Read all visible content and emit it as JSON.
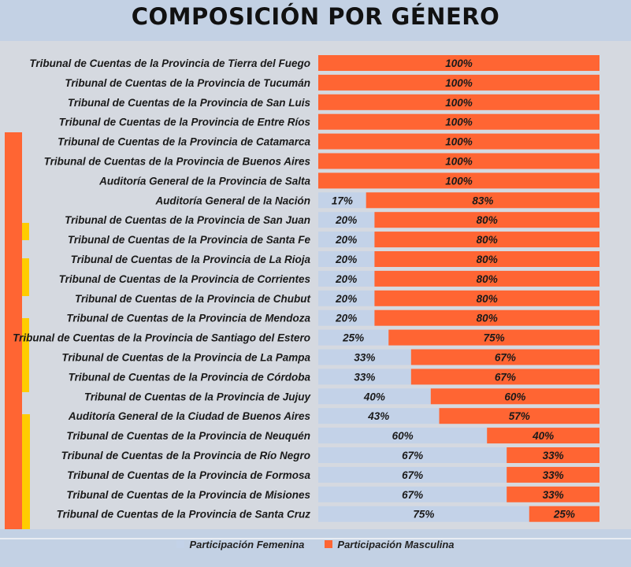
{
  "colors": {
    "female": "#c3d2e8",
    "male": "#ff6533",
    "accent_yellow": "#ffcc00",
    "header": "#c3d1e4"
  },
  "chart_data": {
    "type": "bar",
    "stacked": true,
    "orientation": "horizontal",
    "title": "COMPOSICIÓN POR GÉNERO",
    "xlim": [
      0,
      100
    ],
    "unit": "%",
    "legend_position": "bottom",
    "categories": [
      "Tribunal de Cuentas de la Provincia de Tierra del Fuego",
      "Tribunal de Cuentas de la Provincia de Tucumán",
      "Tribunal de Cuentas de la Provincia de San Luis",
      "Tribunal de Cuentas de la Provincia de Entre Ríos",
      "Tribunal de Cuentas de la Provincia de Catamarca",
      "Tribunal de Cuentas de la Provincia de Buenos Aires",
      "Auditoría General de la Provincia de Salta",
      "Auditoría General de la Nación",
      "Tribunal de Cuentas de la Provincia de San Juan",
      "Tribunal de Cuentas de la Provincia de Santa Fe",
      "Tribunal de Cuentas de la Provincia de La Rioja",
      "Tribunal de Cuentas de la Provincia de Corrientes",
      "Tribunal de Cuentas de la Provincia de Chubut",
      "Tribunal de Cuentas de la Provincia de Mendoza",
      "Tribunal de Cuentas de la Provincia de Santiago del Estero",
      "Tribunal de Cuentas de la Provincia de La Pampa",
      "Tribunal de Cuentas de la Provincia de Córdoba",
      "Tribunal de Cuentas de la Provincia de Jujuy",
      "Auditoría General de la Ciudad de Buenos Aires",
      "Tribunal de Cuentas de la Provincia de Neuquén",
      "Tribunal de Cuentas de la Provincia de Río Negro",
      "Tribunal de Cuentas de la Provincia de Formosa",
      "Tribunal de Cuentas de la Provincia de Misiones",
      "Tribunal de Cuentas de la Provincia de Santa Cruz"
    ],
    "series": [
      {
        "name": "Participación Femenina",
        "color": "#c3d2e8",
        "values": [
          0,
          0,
          0,
          0,
          0,
          0,
          0,
          17,
          20,
          20,
          20,
          20,
          20,
          20,
          25,
          33,
          33,
          40,
          43,
          60,
          67,
          67,
          67,
          75
        ]
      },
      {
        "name": "Participación Masculina",
        "color": "#ff6533",
        "values": [
          100,
          100,
          100,
          100,
          100,
          100,
          100,
          83,
          80,
          80,
          80,
          80,
          80,
          80,
          75,
          67,
          67,
          60,
          57,
          40,
          33,
          33,
          33,
          25
        ]
      }
    ]
  }
}
